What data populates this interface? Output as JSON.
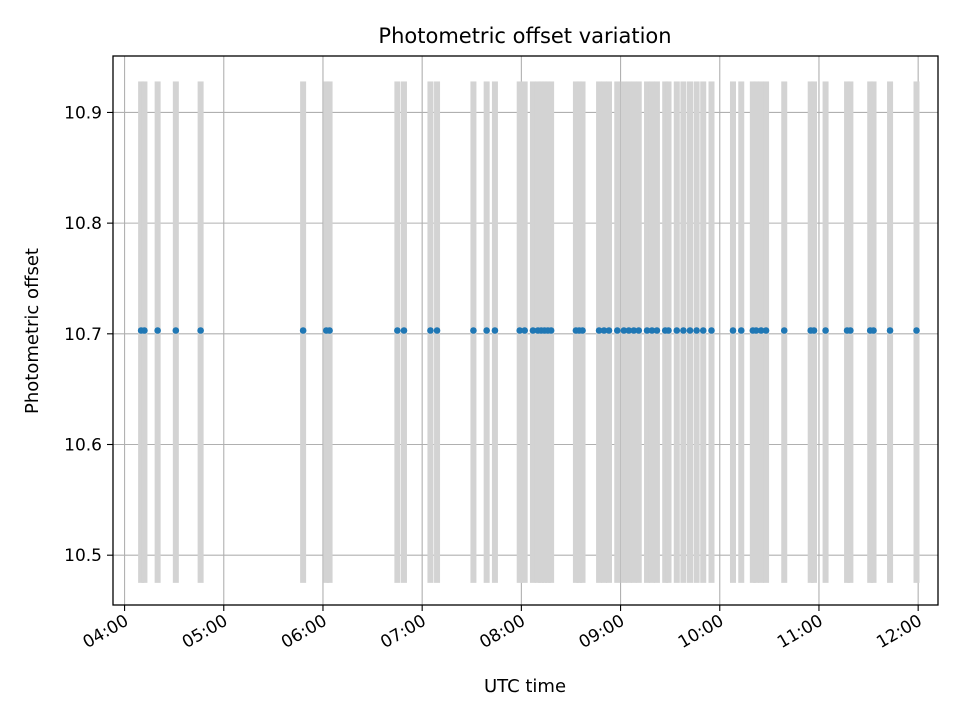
{
  "chart_data": {
    "type": "scatter",
    "title": "Photometric offset variation",
    "xlabel": "UTC time",
    "ylabel": "Photometric offset",
    "x_tick_labels": [
      "04:00",
      "05:00",
      "06:00",
      "07:00",
      "08:00",
      "09:00",
      "10:00",
      "11:00",
      "12:00"
    ],
    "y_ticks": [
      10.5,
      10.6,
      10.7,
      10.8,
      10.9
    ],
    "y_tick_labels": [
      "10.5",
      "10.6",
      "10.7",
      "10.8",
      "10.9"
    ],
    "xlim": [
      "03:53",
      "12:12"
    ],
    "ylim": [
      10.455,
      10.951
    ],
    "grid": true,
    "error_band": [
      10.475,
      10.928
    ],
    "series": [
      {
        "color": "#1f77b4",
        "x": [
          "04:10",
          "04:12",
          "04:20",
          "04:31",
          "04:46",
          "05:48",
          "06:02",
          "06:04",
          "06:45",
          "06:49",
          "07:05",
          "07:09",
          "07:31",
          "07:39",
          "07:44",
          "07:59",
          "08:02",
          "08:07",
          "08:10",
          "08:12",
          "08:14",
          "08:16",
          "08:18",
          "08:33",
          "08:35",
          "08:37",
          "08:47",
          "08:50",
          "08:53",
          "08:58",
          "09:02",
          "09:05",
          "09:08",
          "09:11",
          "09:16",
          "09:19",
          "09:22",
          "09:27",
          "09:29",
          "09:34",
          "09:38",
          "09:42",
          "09:46",
          "09:50",
          "09:55",
          "10:08",
          "10:13",
          "10:20",
          "10:22",
          "10:25",
          "10:28",
          "10:39",
          "10:55",
          "10:57",
          "11:04",
          "11:17",
          "11:19",
          "11:31",
          "11:33",
          "11:43",
          "11:59"
        ],
        "y": [
          10.703,
          10.703,
          10.703,
          10.703,
          10.703,
          10.703,
          10.703,
          10.703,
          10.703,
          10.703,
          10.703,
          10.703,
          10.703,
          10.703,
          10.703,
          10.703,
          10.703,
          10.703,
          10.703,
          10.703,
          10.703,
          10.703,
          10.703,
          10.703,
          10.703,
          10.703,
          10.703,
          10.703,
          10.703,
          10.703,
          10.703,
          10.703,
          10.703,
          10.703,
          10.703,
          10.703,
          10.703,
          10.703,
          10.703,
          10.703,
          10.703,
          10.703,
          10.703,
          10.703,
          10.703,
          10.703,
          10.703,
          10.703,
          10.703,
          10.703,
          10.703,
          10.703,
          10.703,
          10.703,
          10.703,
          10.703,
          10.703,
          10.703,
          10.703,
          10.703,
          10.703
        ]
      }
    ],
    "band_color": "#d3d3d3",
    "grid_color": "#b0b0b0"
  }
}
